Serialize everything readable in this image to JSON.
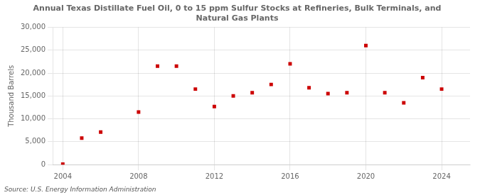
{
  "chart_data": {
    "type": "scatter",
    "title": "Annual Texas Distillate Fuel Oil, 0 to 15 ppm Sulfur Stocks at Refineries, Bulk Terminals, and\nNatural Gas Plants",
    "ylabel": "Thousand Barrels",
    "annotations": [
      "Source: U.S. Energy Information Administration"
    ],
    "x": [
      2004,
      2005,
      2006,
      2008,
      2009,
      2010,
      2011,
      2012,
      2013,
      2014,
      2015,
      2016,
      2017,
      2018,
      2019,
      2020,
      2021,
      2022,
      2023,
      2024
    ],
    "values": [
      100,
      5800,
      7100,
      11500,
      21500,
      21500,
      16500,
      12700,
      15000,
      15700,
      17500,
      22000,
      16800,
      15500,
      15700,
      26000,
      15700,
      13500,
      19000,
      16500
    ],
    "color": "#cc0000",
    "marker": "square",
    "xlim": [
      2003.5,
      2025.5
    ],
    "ylim": [
      0,
      30000
    ],
    "xticks": [
      2004,
      2008,
      2012,
      2016,
      2020,
      2024
    ],
    "yticks": [
      0,
      {
        "value": 5000,
        "label": "5,000"
      },
      {
        "value": 10000,
        "label": "10,000"
      },
      {
        "value": 15000,
        "label": "15,000"
      },
      {
        "value": 20000,
        "label": "20,000"
      },
      {
        "value": 25000,
        "label": "25,000"
      },
      {
        "value": 30000,
        "label": "30,000"
      }
    ],
    "grid": true
  }
}
